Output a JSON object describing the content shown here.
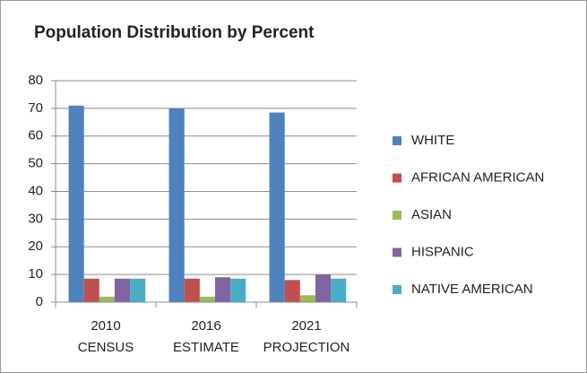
{
  "chart_data": {
    "type": "bar",
    "title": "Population Distribution  by Percent",
    "categories": [
      "2010 CENSUS",
      "2016 ESTIMATE",
      "2021 PROJECTION"
    ],
    "series": [
      {
        "name": "WHITE",
        "color": "#4f81bd",
        "values": [
          71,
          70,
          68.5
        ]
      },
      {
        "name": "AFRICAN AMERICAN",
        "color": "#c0504d",
        "values": [
          8.5,
          8.5,
          8
        ]
      },
      {
        "name": "ASIAN",
        "color": "#9bbb59",
        "values": [
          2,
          2,
          2.5
        ]
      },
      {
        "name": "HISPANIC",
        "color": "#8064a2",
        "values": [
          8.5,
          9,
          10
        ]
      },
      {
        "name": "NATIVE AMERICAN",
        "color": "#4bacc6",
        "values": [
          8.5,
          8.5,
          8.5
        ]
      }
    ],
    "ylim": [
      0,
      80
    ],
    "yticks": [
      0,
      10,
      20,
      30,
      40,
      50,
      60,
      70,
      80
    ],
    "grid": true,
    "legend": "right"
  }
}
